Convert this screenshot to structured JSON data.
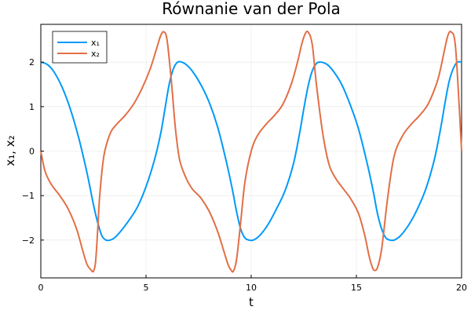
{
  "chart_data": {
    "type": "line",
    "title": "Równanie van der Pola",
    "xlabel": "t",
    "ylabel": "x₁, x₂",
    "xlim": [
      0,
      20
    ],
    "ylim": [
      -2.85,
      2.85
    ],
    "xticks": [
      0,
      5,
      10,
      15,
      20
    ],
    "xtick_labels": [
      "0",
      "5",
      "10",
      "15",
      "20"
    ],
    "yticks": [
      -2,
      -1,
      0,
      1,
      2
    ],
    "ytick_labels": [
      "−2",
      "−1",
      "0",
      "1",
      "2"
    ],
    "grid": true,
    "legend_position": "top-left",
    "series": [
      {
        "name": "x₁",
        "color": "#009af9",
        "x": [
          0,
          0.3,
          0.6,
          1.0,
          1.4,
          1.8,
          2.2,
          2.5,
          2.7,
          2.9,
          3.1,
          3.3,
          3.5,
          3.8,
          4.2,
          4.6,
          5.0,
          5.4,
          5.7,
          5.9,
          6.1,
          6.3,
          6.5,
          6.7,
          6.9,
          7.2,
          7.6,
          8.0,
          8.4,
          8.8,
          9.1,
          9.3,
          9.5,
          9.7,
          9.9,
          10.1,
          10.4,
          10.8,
          11.2,
          11.6,
          12.0,
          12.3,
          12.5,
          12.7,
          12.9,
          13.1,
          13.3,
          13.6,
          13.9,
          14.3,
          14.7,
          15.1,
          15.5,
          15.8,
          16.0,
          16.2,
          16.4,
          16.6,
          16.8,
          17.1,
          17.5,
          17.9,
          18.3,
          18.7,
          19.0,
          19.2,
          19.4,
          19.6,
          19.8,
          20.0
        ],
        "values": [
          2.0,
          1.95,
          1.8,
          1.45,
          0.95,
          0.3,
          -0.5,
          -1.2,
          -1.6,
          -1.9,
          -2.0,
          -2.0,
          -1.95,
          -1.8,
          -1.55,
          -1.25,
          -0.8,
          -0.2,
          0.4,
          0.95,
          1.5,
          1.85,
          2.0,
          2.0,
          1.95,
          1.8,
          1.5,
          1.1,
          0.55,
          -0.2,
          -0.85,
          -1.35,
          -1.75,
          -1.95,
          -2.0,
          -2.0,
          -1.9,
          -1.65,
          -1.3,
          -0.9,
          -0.3,
          0.4,
          0.95,
          1.45,
          1.8,
          1.97,
          2.0,
          1.95,
          1.8,
          1.5,
          1.05,
          0.5,
          -0.25,
          -0.9,
          -1.4,
          -1.75,
          -1.95,
          -2.0,
          -2.0,
          -1.9,
          -1.65,
          -1.3,
          -0.85,
          -0.2,
          0.5,
          1.05,
          1.55,
          1.85,
          2.0,
          2.0
        ]
      },
      {
        "name": "x₂",
        "color": "#e26f46",
        "x": [
          0,
          0.2,
          0.5,
          0.9,
          1.3,
          1.7,
          2.0,
          2.2,
          2.4,
          2.5,
          2.6,
          2.7,
          2.8,
          3.0,
          3.3,
          3.6,
          4.0,
          4.4,
          4.8,
          5.2,
          5.5,
          5.7,
          5.85,
          6.0,
          6.2,
          6.4,
          6.6,
          6.9,
          7.2,
          7.6,
          8.0,
          8.4,
          8.7,
          8.9,
          9.05,
          9.15,
          9.3,
          9.5,
          9.7,
          10.0,
          10.3,
          10.7,
          11.1,
          11.5,
          11.9,
          12.2,
          12.4,
          12.55,
          12.7,
          12.9,
          13.1,
          13.4,
          13.7,
          14.0,
          14.3,
          14.7,
          15.1,
          15.4,
          15.6,
          15.75,
          15.85,
          16.0,
          16.2,
          16.5,
          16.8,
          17.2,
          17.6,
          18.0,
          18.4,
          18.8,
          19.0,
          19.2,
          19.35,
          19.5,
          19.7,
          19.9,
          20.0
        ],
        "values": [
          0.0,
          -0.45,
          -0.75,
          -1.0,
          -1.3,
          -1.75,
          -2.25,
          -2.55,
          -2.68,
          -2.7,
          -2.5,
          -1.8,
          -1.0,
          -0.1,
          0.4,
          0.6,
          0.8,
          1.05,
          1.4,
          1.85,
          2.3,
          2.6,
          2.68,
          2.5,
          1.6,
          0.5,
          -0.2,
          -0.6,
          -0.85,
          -1.05,
          -1.35,
          -1.8,
          -2.25,
          -2.55,
          -2.68,
          -2.7,
          -2.45,
          -1.6,
          -0.7,
          0.0,
          0.35,
          0.6,
          0.8,
          1.05,
          1.5,
          2.0,
          2.4,
          2.62,
          2.68,
          2.4,
          1.5,
          0.4,
          -0.3,
          -0.6,
          -0.8,
          -1.05,
          -1.4,
          -1.9,
          -2.35,
          -2.6,
          -2.68,
          -2.62,
          -2.2,
          -1.0,
          -0.1,
          0.35,
          0.6,
          0.8,
          1.05,
          1.5,
          1.85,
          2.3,
          2.6,
          2.68,
          2.4,
          0.9,
          0.0
        ]
      }
    ]
  }
}
